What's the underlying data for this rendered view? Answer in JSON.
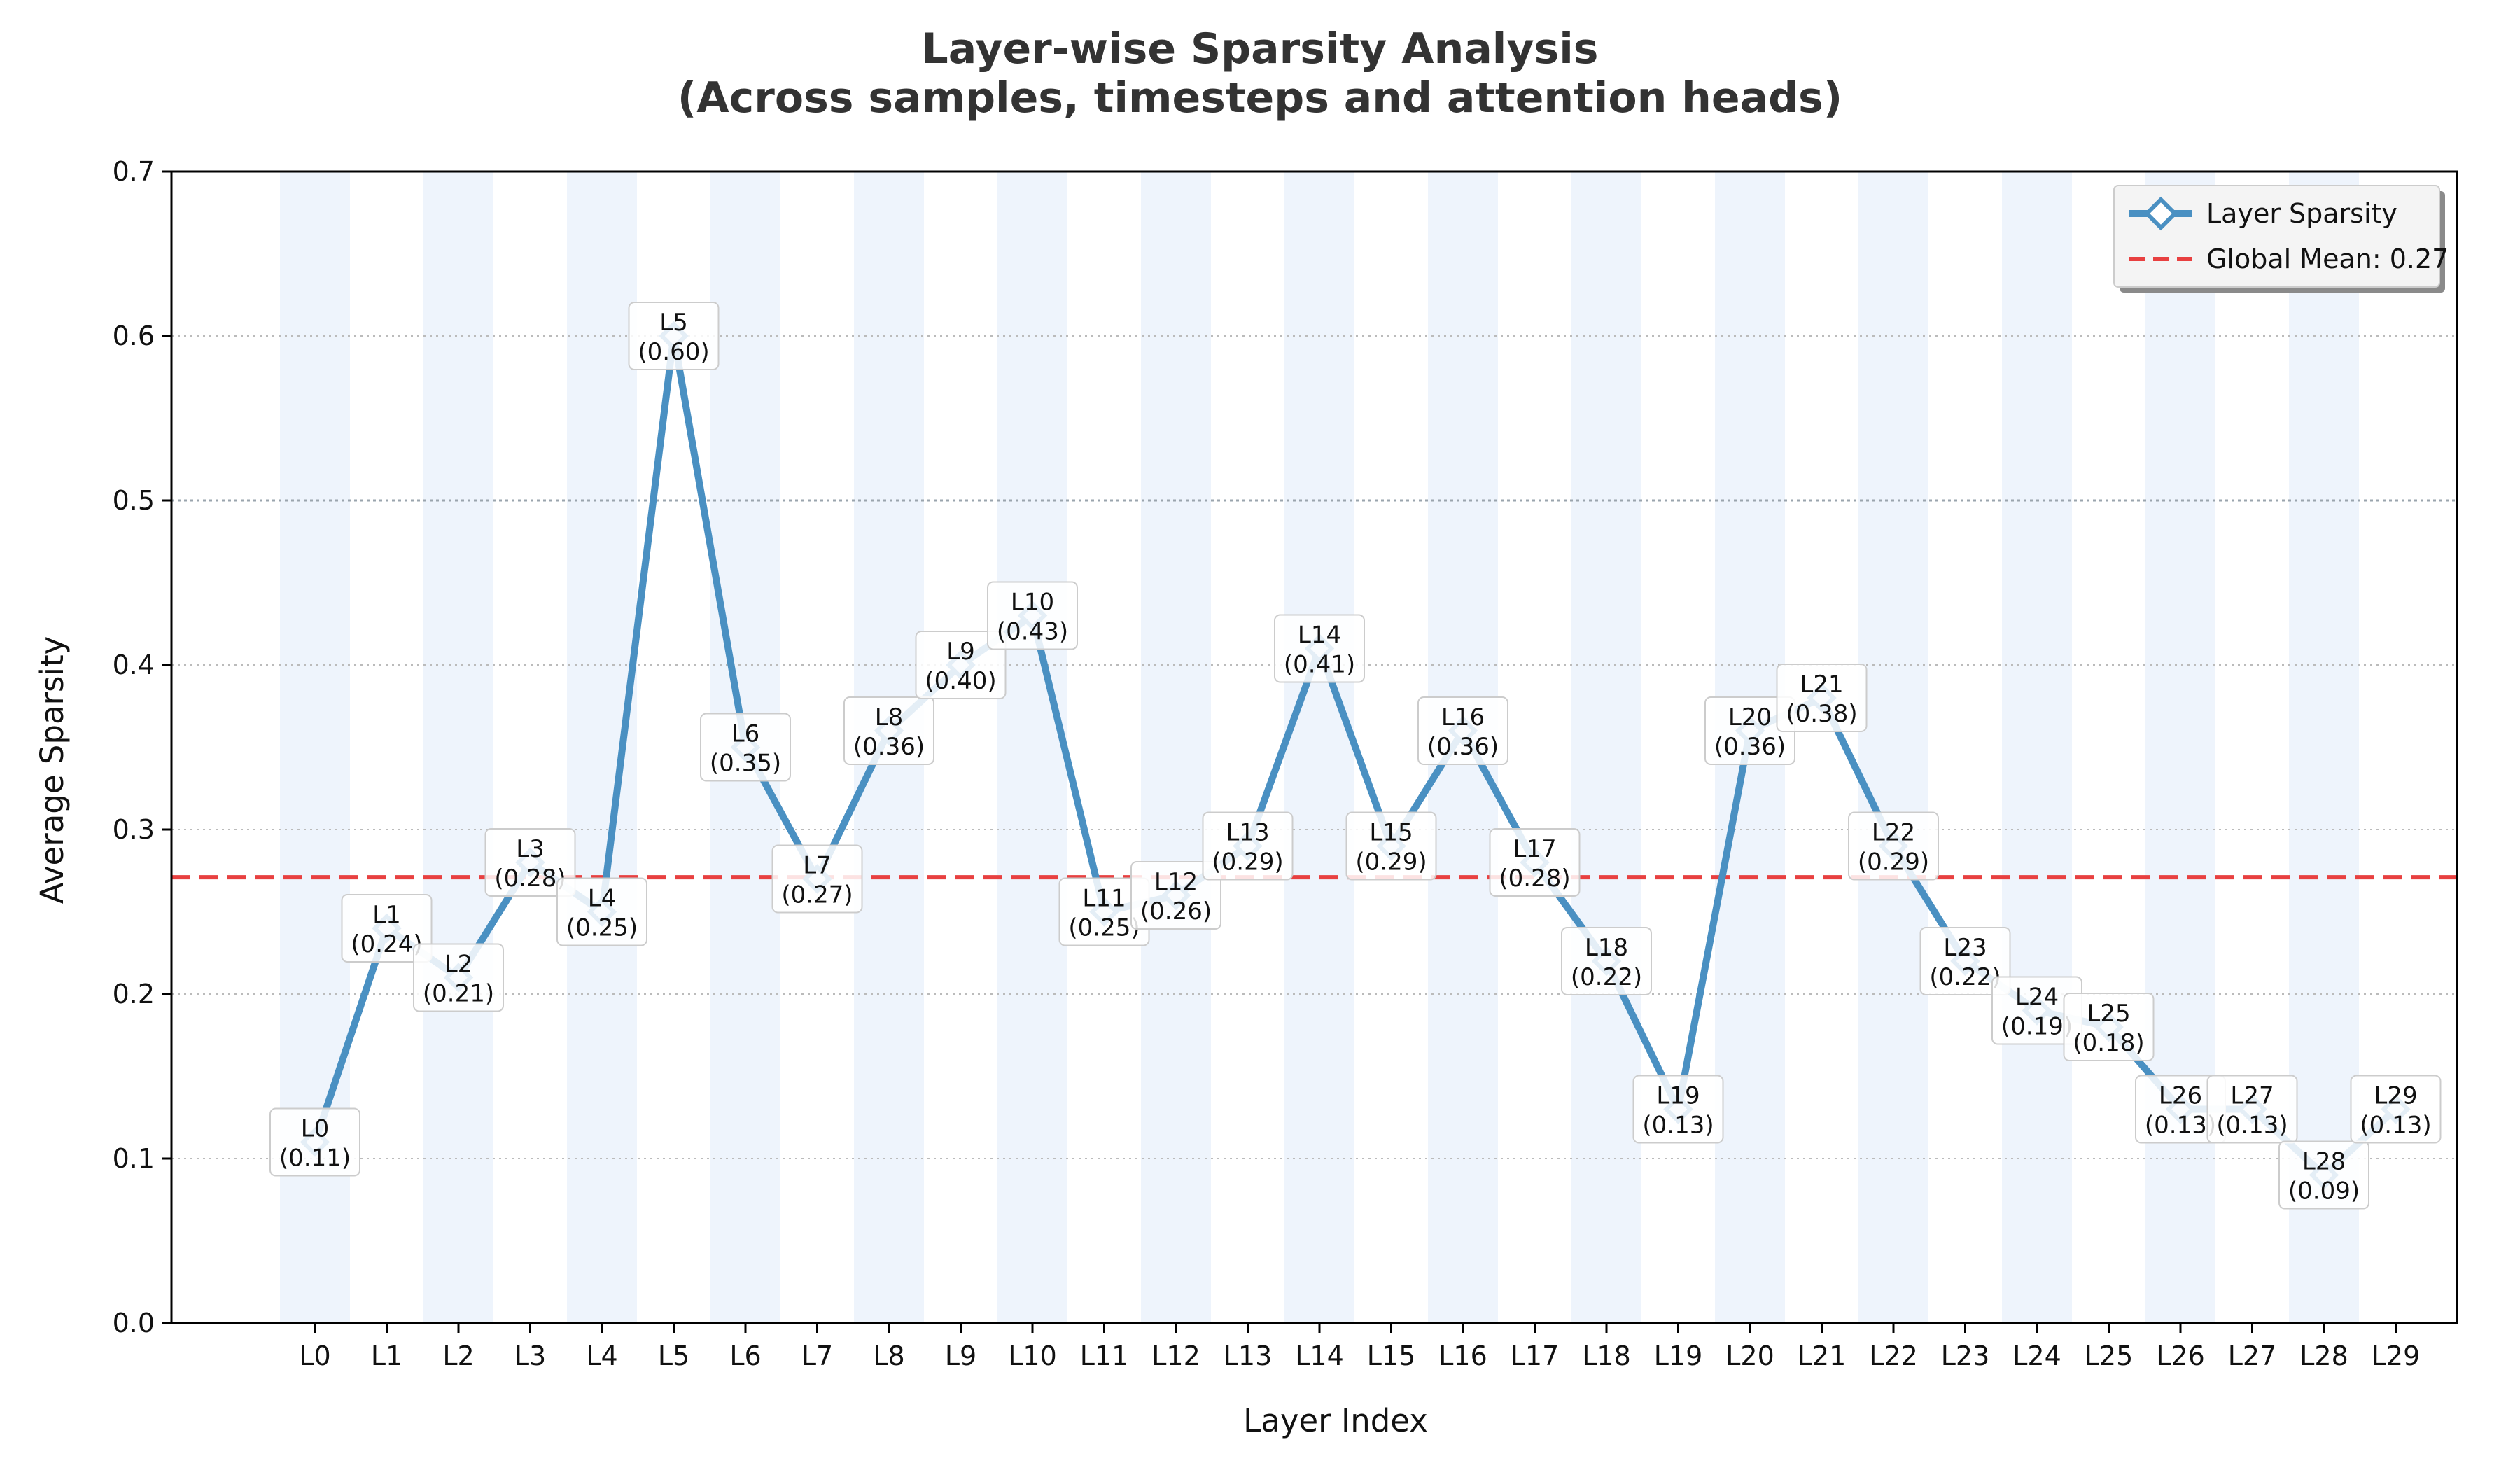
{
  "chart_data": {
    "type": "line",
    "title": "Layer-wise Sparsity Analysis",
    "subtitle": "(Across samples, timesteps and attention heads)",
    "xlabel": "Layer Index",
    "ylabel": "Average Sparsity",
    "ylim": [
      0.0,
      0.7
    ],
    "yticks": [
      "0.0",
      "0.1",
      "0.2",
      "0.3",
      "0.4",
      "0.5",
      "0.6",
      "0.7"
    ],
    "grid": true,
    "reference_line_value": 0.5,
    "legend_position": "top-right",
    "categories": [
      "L0",
      "L1",
      "L2",
      "L3",
      "L4",
      "L5",
      "L6",
      "L7",
      "L8",
      "L9",
      "L10",
      "L11",
      "L12",
      "L13",
      "L14",
      "L15",
      "L16",
      "L17",
      "L18",
      "L19",
      "L20",
      "L21",
      "L22",
      "L23",
      "L24",
      "L25",
      "L26",
      "L27",
      "L28",
      "L29"
    ],
    "series": [
      {
        "name": "Layer Sparsity",
        "color": "#4a90c2",
        "marker": "diamond",
        "values": [
          0.11,
          0.24,
          0.21,
          0.28,
          0.25,
          0.6,
          0.35,
          0.27,
          0.36,
          0.4,
          0.43,
          0.25,
          0.26,
          0.29,
          0.41,
          0.29,
          0.36,
          0.28,
          0.22,
          0.13,
          0.36,
          0.38,
          0.29,
          0.22,
          0.19,
          0.18,
          0.13,
          0.13,
          0.09,
          0.13
        ],
        "labels": [
          "(0.11)",
          "(0.24)",
          "(0.21)",
          "(0.28)",
          "(0.25)",
          "(0.60)",
          "(0.35)",
          "(0.27)",
          "(0.36)",
          "(0.40)",
          "(0.43)",
          "(0.25)",
          "(0.26)",
          "(0.29)",
          "(0.41)",
          "(0.29)",
          "(0.36)",
          "(0.28)",
          "(0.22)",
          "(0.13)",
          "(0.36)",
          "(0.38)",
          "(0.29)",
          "(0.22)",
          "(0.19)",
          "(0.18)",
          "(0.13)",
          "(0.13)",
          "(0.09)",
          "(0.13)"
        ]
      }
    ],
    "global_mean": {
      "name": "Global Mean: 0.27",
      "value": 0.271,
      "color": "#e84040"
    },
    "band_color": "#eef4fc"
  }
}
